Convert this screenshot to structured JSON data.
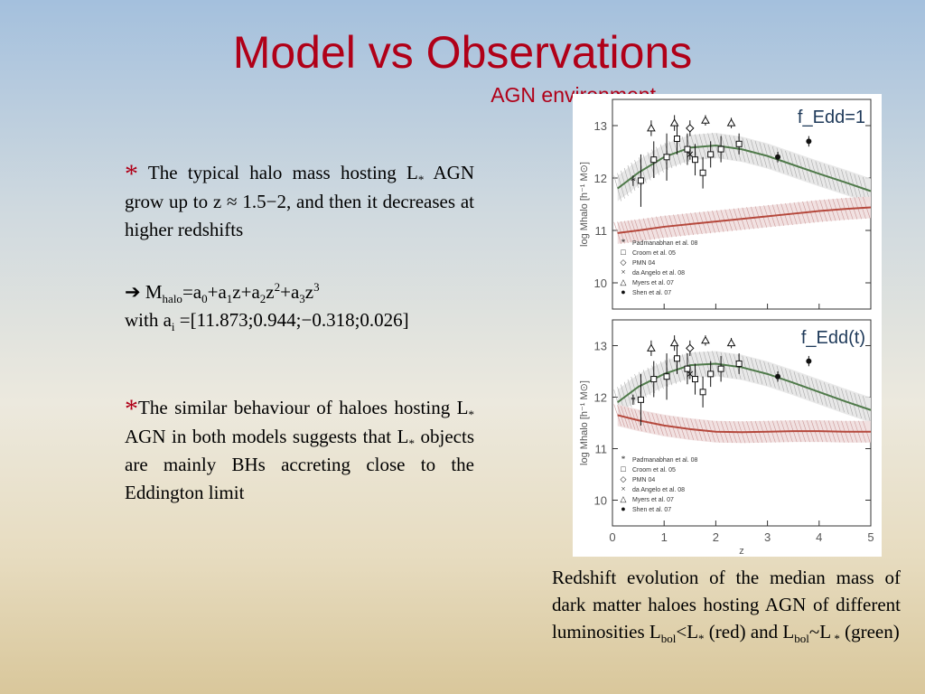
{
  "slide": {
    "title": "Model vs Observations",
    "subtitle": "AGN environment",
    "bullet1": {
      "star": "*",
      "text_a": "The typical halo mass hosting L",
      "text_a_sub": "*",
      "text_b": " AGN grow up to z ≈ 1.5−2, and then it decreases at higher redshifts"
    },
    "formula": {
      "arrow": "➔",
      "m": " M",
      "m_sub": "halo",
      "eq_a": "=a",
      "s0": "0",
      "plus_a": "+a",
      "s1": "1",
      "z_plus_a": "z+a",
      "s2": "2",
      "z": "z",
      "p2": "2",
      "plus_a3": "+a",
      "s3": "3",
      "z3": "z",
      "p3": "3",
      "with": "with a",
      "with_sub": "i",
      "values": " =[11.873;0.944;−0.318;0.026]"
    },
    "bullet2": {
      "star": "*",
      "text_a": "The similar behaviour of haloes hosting L",
      "sub_a": "*",
      "text_b": " AGN in both models suggests that L",
      "sub_b": "*",
      "text_c": " objects are mainly BHs accreting close to the Eddington limit"
    },
    "caption": {
      "a": "Redshift evolution of the median mass of dark matter haloes hosting AGN of different luminosities L",
      "bol1": "bol",
      "b": "<L",
      "star1": "*",
      "c": " (red) and L",
      "bol2": "bol",
      "d": "~L",
      "star2": " *",
      "e": " (green)"
    }
  },
  "chart_data": [
    {
      "type": "scatter",
      "title": "f_Edd=1",
      "xlabel": "",
      "ylabel": "log Mhalo [h⁻¹ M⊙]",
      "xlim": [
        0,
        5
      ],
      "ylim": [
        9.5,
        13.5
      ],
      "yticks": [
        10,
        11,
        12,
        13
      ],
      "legend_position": "bottom-left",
      "legend": [
        "Padmanabhan et al. 08",
        "Croom et al. 05",
        "PMN 04",
        "da Angelo et al. 08",
        "Myers et al. 07",
        "Shen et al. 07"
      ],
      "model_lines": [
        {
          "name": "green",
          "color": "#4f7a4a",
          "x": [
            0.1,
            0.5,
            1.0,
            1.5,
            2.0,
            2.5,
            3.0,
            3.5,
            4.0,
            4.5,
            5.0
          ],
          "y": [
            11.8,
            12.1,
            12.4,
            12.58,
            12.62,
            12.55,
            12.42,
            12.25,
            12.08,
            11.92,
            11.75
          ]
        },
        {
          "name": "red",
          "color": "#b5483c",
          "x": [
            0.1,
            0.5,
            1.0,
            1.5,
            2.0,
            2.5,
            3.0,
            3.5,
            4.0,
            4.5,
            5.0
          ],
          "y": [
            10.95,
            11.0,
            11.07,
            11.12,
            11.17,
            11.22,
            11.27,
            11.32,
            11.37,
            11.41,
            11.44
          ]
        }
      ],
      "series": [
        {
          "name": "Padmanabhan et al. 08",
          "marker": "asterisk",
          "points": [
            {
              "x": 0.4,
              "y": 11.95,
              "err": 0.1
            }
          ]
        },
        {
          "name": "Croom et al. 05",
          "marker": "square",
          "points": [
            {
              "x": 0.55,
              "y": 11.95,
              "err": 0.5
            },
            {
              "x": 0.8,
              "y": 12.35,
              "err": 0.35
            },
            {
              "x": 1.05,
              "y": 12.4,
              "err": 0.45
            },
            {
              "x": 1.25,
              "y": 12.75,
              "err": 0.3
            },
            {
              "x": 1.45,
              "y": 12.55,
              "err": 0.3
            },
            {
              "x": 1.6,
              "y": 12.35,
              "err": 0.3
            },
            {
              "x": 1.75,
              "y": 12.1,
              "err": 0.3
            },
            {
              "x": 1.9,
              "y": 12.45,
              "err": 0.25
            },
            {
              "x": 2.1,
              "y": 12.55,
              "err": 0.25
            },
            {
              "x": 2.45,
              "y": 12.65,
              "err": 0.2
            }
          ]
        },
        {
          "name": "PMN 04",
          "marker": "diamond",
          "points": [
            {
              "x": 1.5,
              "y": 12.95,
              "err": 0.15
            }
          ]
        },
        {
          "name": "da Angelo et al. 08",
          "marker": "x",
          "points": [
            {
              "x": 1.5,
              "y": 12.45,
              "err": 0.1
            }
          ]
        },
        {
          "name": "Myers et al. 07",
          "marker": "triangle",
          "points": [
            {
              "x": 0.75,
              "y": 12.95,
              "err": 0.15
            },
            {
              "x": 1.2,
              "y": 13.05,
              "err": 0.15
            },
            {
              "x": 1.8,
              "y": 13.1,
              "err": 0.1
            },
            {
              "x": 2.3,
              "y": 13.05,
              "err": 0.1
            }
          ]
        },
        {
          "name": "Shen et al. 07",
          "marker": "circle",
          "points": [
            {
              "x": 3.2,
              "y": 12.4,
              "err": 0.1
            },
            {
              "x": 3.8,
              "y": 12.7,
              "err": 0.1
            }
          ]
        }
      ]
    },
    {
      "type": "scatter",
      "title": "f_Edd(t)",
      "xlabel": "z",
      "ylabel": "log Mhalo [h⁻¹ M⊙]",
      "xlim": [
        0,
        5
      ],
      "ylim": [
        9.5,
        13.5
      ],
      "xticks": [
        0,
        1,
        2,
        3,
        4,
        5
      ],
      "yticks": [
        10,
        11,
        12,
        13
      ],
      "legend_position": "bottom-left",
      "legend": [
        "Padmanabhan et al. 08",
        "Croom et al. 05",
        "PMN 04",
        "da Angelo et al. 08",
        "Myers et al. 07",
        "Shen et al. 07"
      ],
      "model_lines": [
        {
          "name": "green",
          "color": "#4f7a4a",
          "x": [
            0.1,
            0.5,
            1.0,
            1.5,
            2.0,
            2.5,
            3.0,
            3.5,
            4.0,
            4.5,
            5.0
          ],
          "y": [
            11.9,
            12.2,
            12.45,
            12.62,
            12.65,
            12.58,
            12.45,
            12.28,
            12.1,
            11.92,
            11.75
          ]
        },
        {
          "name": "red",
          "color": "#b5483c",
          "x": [
            0.1,
            0.5,
            1.0,
            1.5,
            2.0,
            2.5,
            3.0,
            3.5,
            4.0,
            4.5,
            5.0
          ],
          "y": [
            11.65,
            11.55,
            11.45,
            11.38,
            11.33,
            11.32,
            11.33,
            11.34,
            11.34,
            11.33,
            11.33
          ]
        }
      ],
      "series": [
        {
          "name": "Padmanabhan et al. 08",
          "marker": "asterisk",
          "points": [
            {
              "x": 0.4,
              "y": 11.95,
              "err": 0.1
            }
          ]
        },
        {
          "name": "Croom et al. 05",
          "marker": "square",
          "points": [
            {
              "x": 0.55,
              "y": 11.95,
              "err": 0.5
            },
            {
              "x": 0.8,
              "y": 12.35,
              "err": 0.35
            },
            {
              "x": 1.05,
              "y": 12.4,
              "err": 0.45
            },
            {
              "x": 1.25,
              "y": 12.75,
              "err": 0.3
            },
            {
              "x": 1.45,
              "y": 12.55,
              "err": 0.3
            },
            {
              "x": 1.6,
              "y": 12.35,
              "err": 0.3
            },
            {
              "x": 1.75,
              "y": 12.1,
              "err": 0.3
            },
            {
              "x": 1.9,
              "y": 12.45,
              "err": 0.25
            },
            {
              "x": 2.1,
              "y": 12.55,
              "err": 0.25
            },
            {
              "x": 2.45,
              "y": 12.65,
              "err": 0.2
            }
          ]
        },
        {
          "name": "PMN 04",
          "marker": "diamond",
          "points": [
            {
              "x": 1.5,
              "y": 12.95,
              "err": 0.15
            }
          ]
        },
        {
          "name": "da Angelo et al. 08",
          "marker": "x",
          "points": [
            {
              "x": 1.5,
              "y": 12.45,
              "err": 0.1
            }
          ]
        },
        {
          "name": "Myers et al. 07",
          "marker": "triangle",
          "points": [
            {
              "x": 0.75,
              "y": 12.95,
              "err": 0.15
            },
            {
              "x": 1.2,
              "y": 13.05,
              "err": 0.15
            },
            {
              "x": 1.8,
              "y": 13.1,
              "err": 0.1
            },
            {
              "x": 2.3,
              "y": 13.05,
              "err": 0.1
            }
          ]
        },
        {
          "name": "Shen et al. 07",
          "marker": "circle",
          "points": [
            {
              "x": 3.2,
              "y": 12.4,
              "err": 0.1
            },
            {
              "x": 3.8,
              "y": 12.7,
              "err": 0.1
            }
          ]
        }
      ]
    }
  ]
}
